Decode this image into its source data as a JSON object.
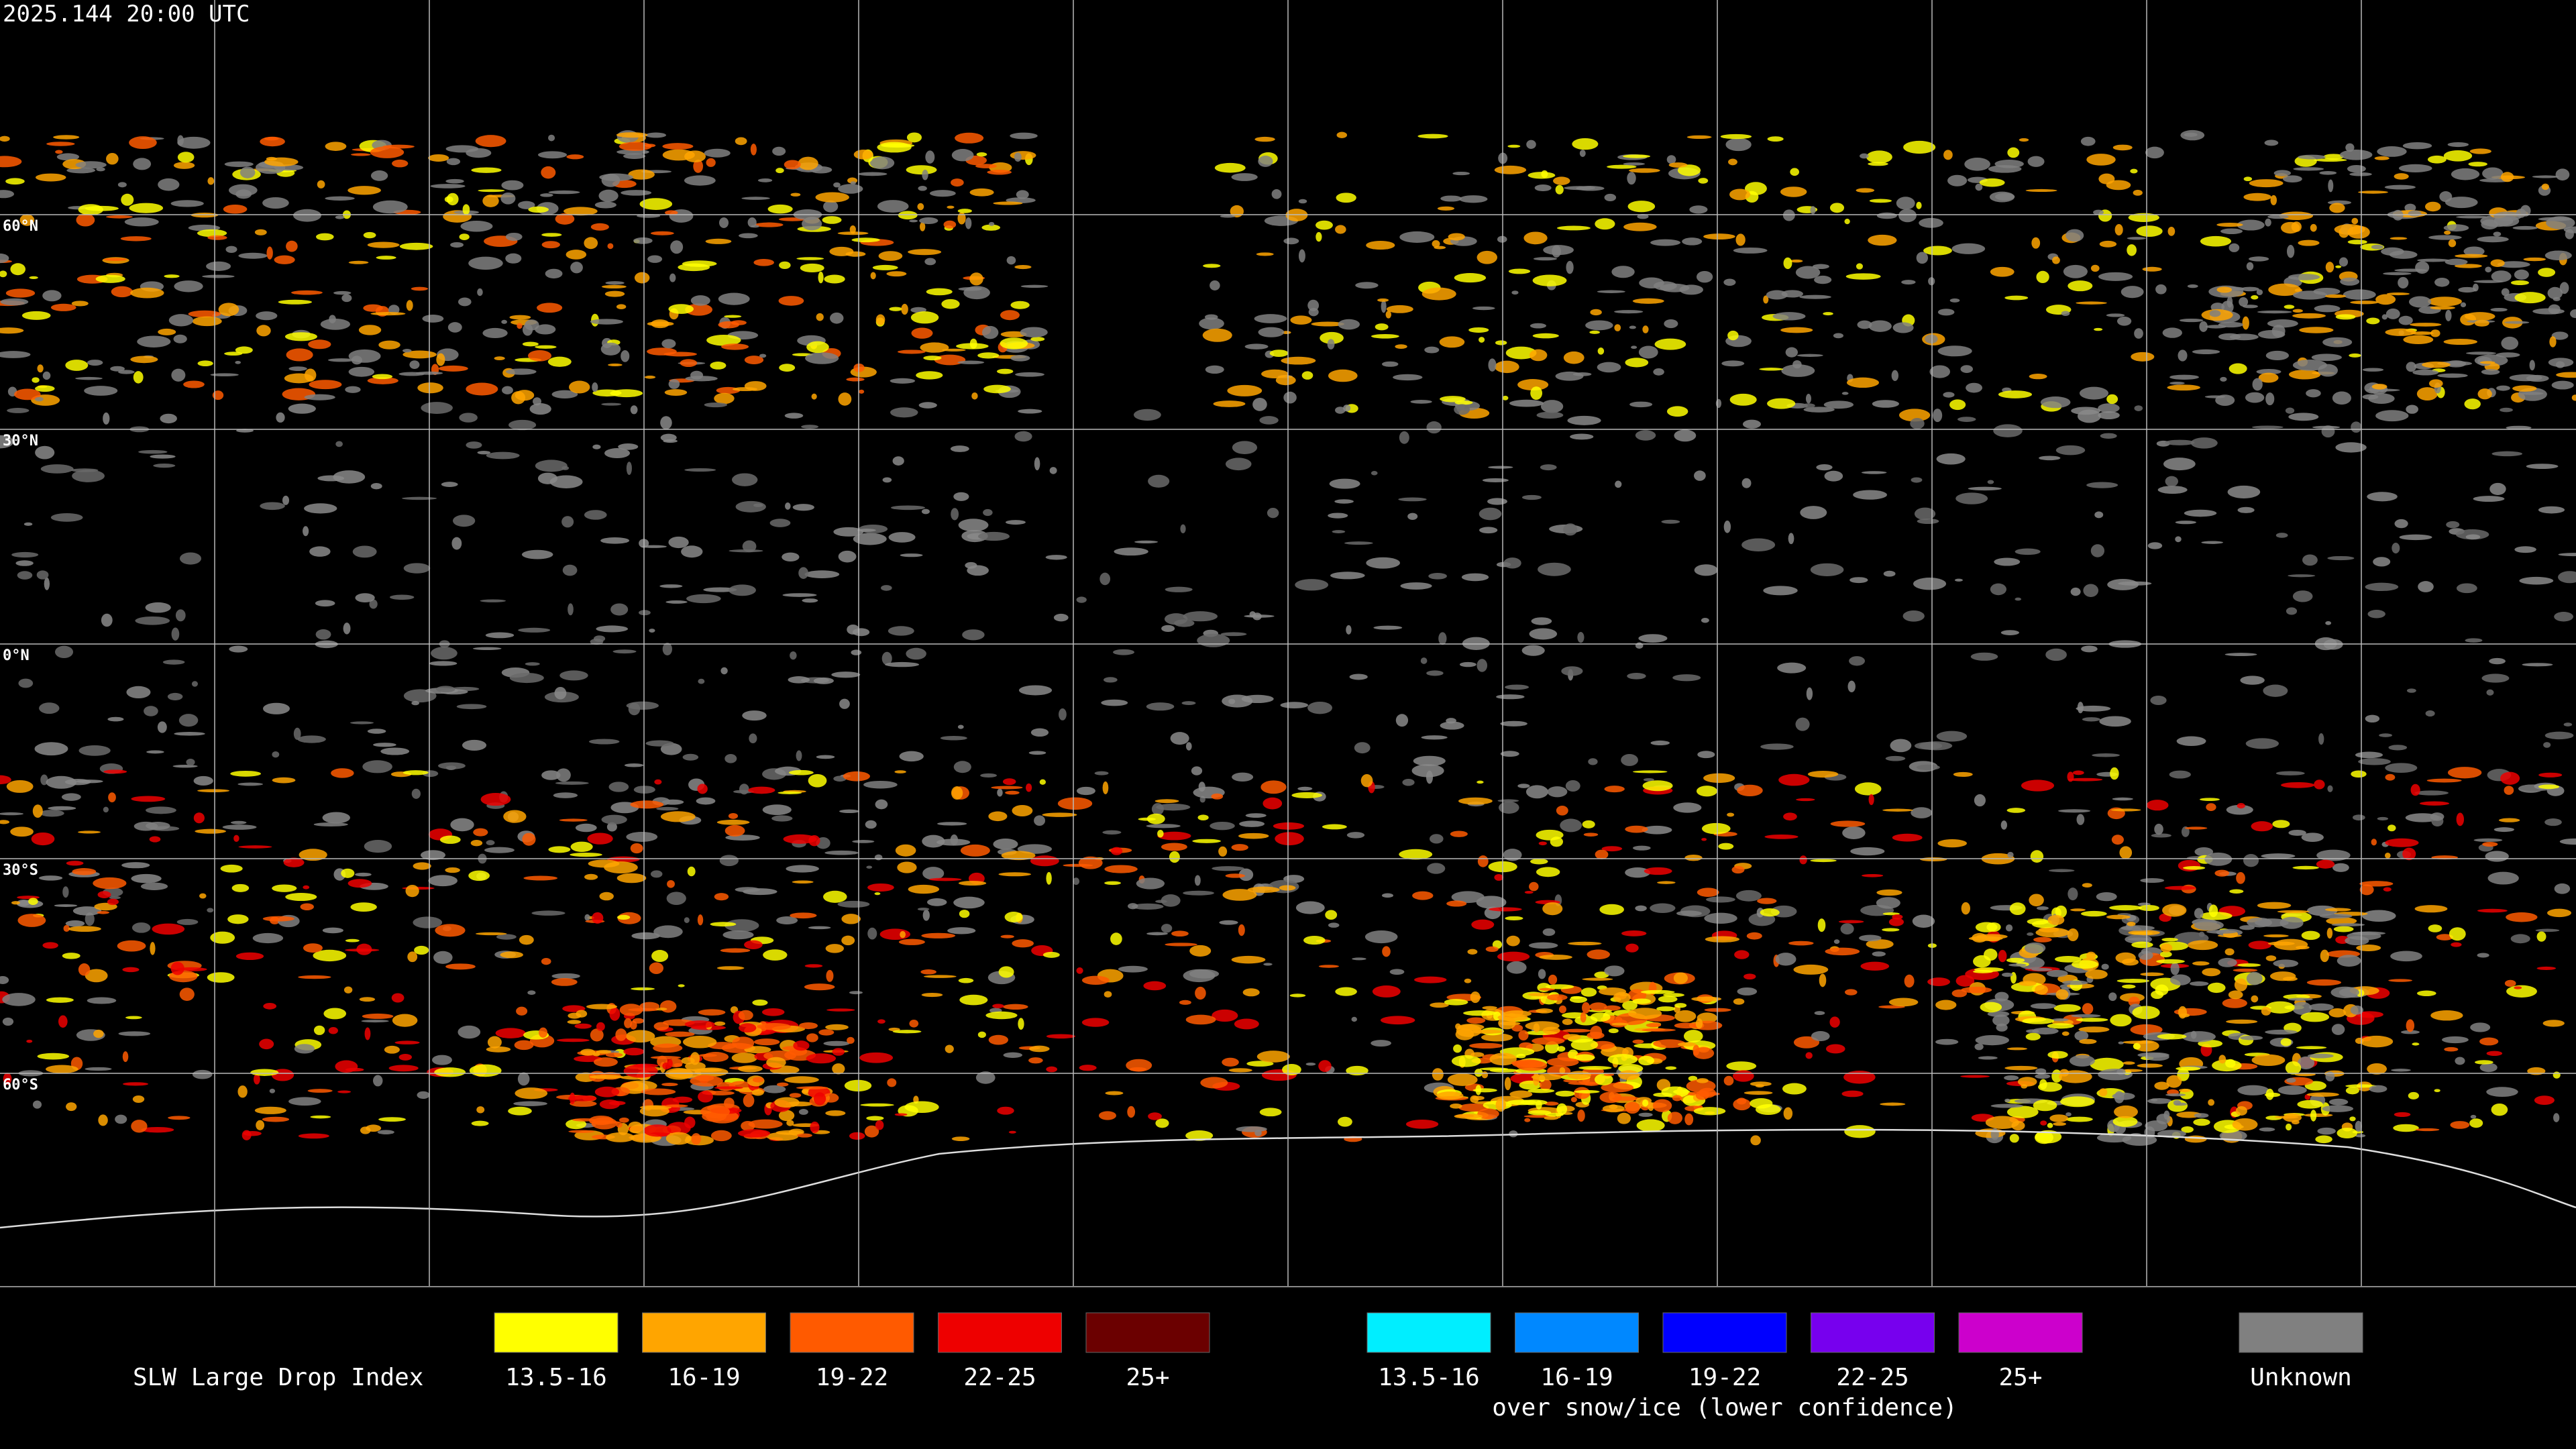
{
  "header": {
    "timestamp": "2025.144 20:00 UTC"
  },
  "map": {
    "latitude_labels": [
      "60°N",
      "30°N",
      "0°N",
      "30°S",
      "60°S"
    ]
  },
  "legend": {
    "title": "SLW Large Drop Index",
    "groups": [
      {
        "items": [
          {
            "label": "13.5-16",
            "color": "#ffff00"
          },
          {
            "label": "16-19",
            "color": "#ffa500"
          },
          {
            "label": "19-22",
            "color": "#ff5a00"
          },
          {
            "label": "22-25",
            "color": "#ee0000"
          },
          {
            "label": "25+",
            "color": "#6b0000"
          }
        ]
      },
      {
        "items": [
          {
            "label": "13.5-16",
            "color": "#00eeff"
          },
          {
            "label": "16-19",
            "color": "#0088ff"
          },
          {
            "label": "19-22",
            "color": "#0000ff"
          },
          {
            "label": "22-25",
            "color": "#7700ee"
          },
          {
            "label": "25+",
            "color": "#cc00cc"
          }
        ],
        "caption": "over snow/ice (lower confidence)"
      },
      {
        "items": [
          {
            "label": "Unknown",
            "color": "#808080"
          }
        ]
      }
    ]
  }
}
